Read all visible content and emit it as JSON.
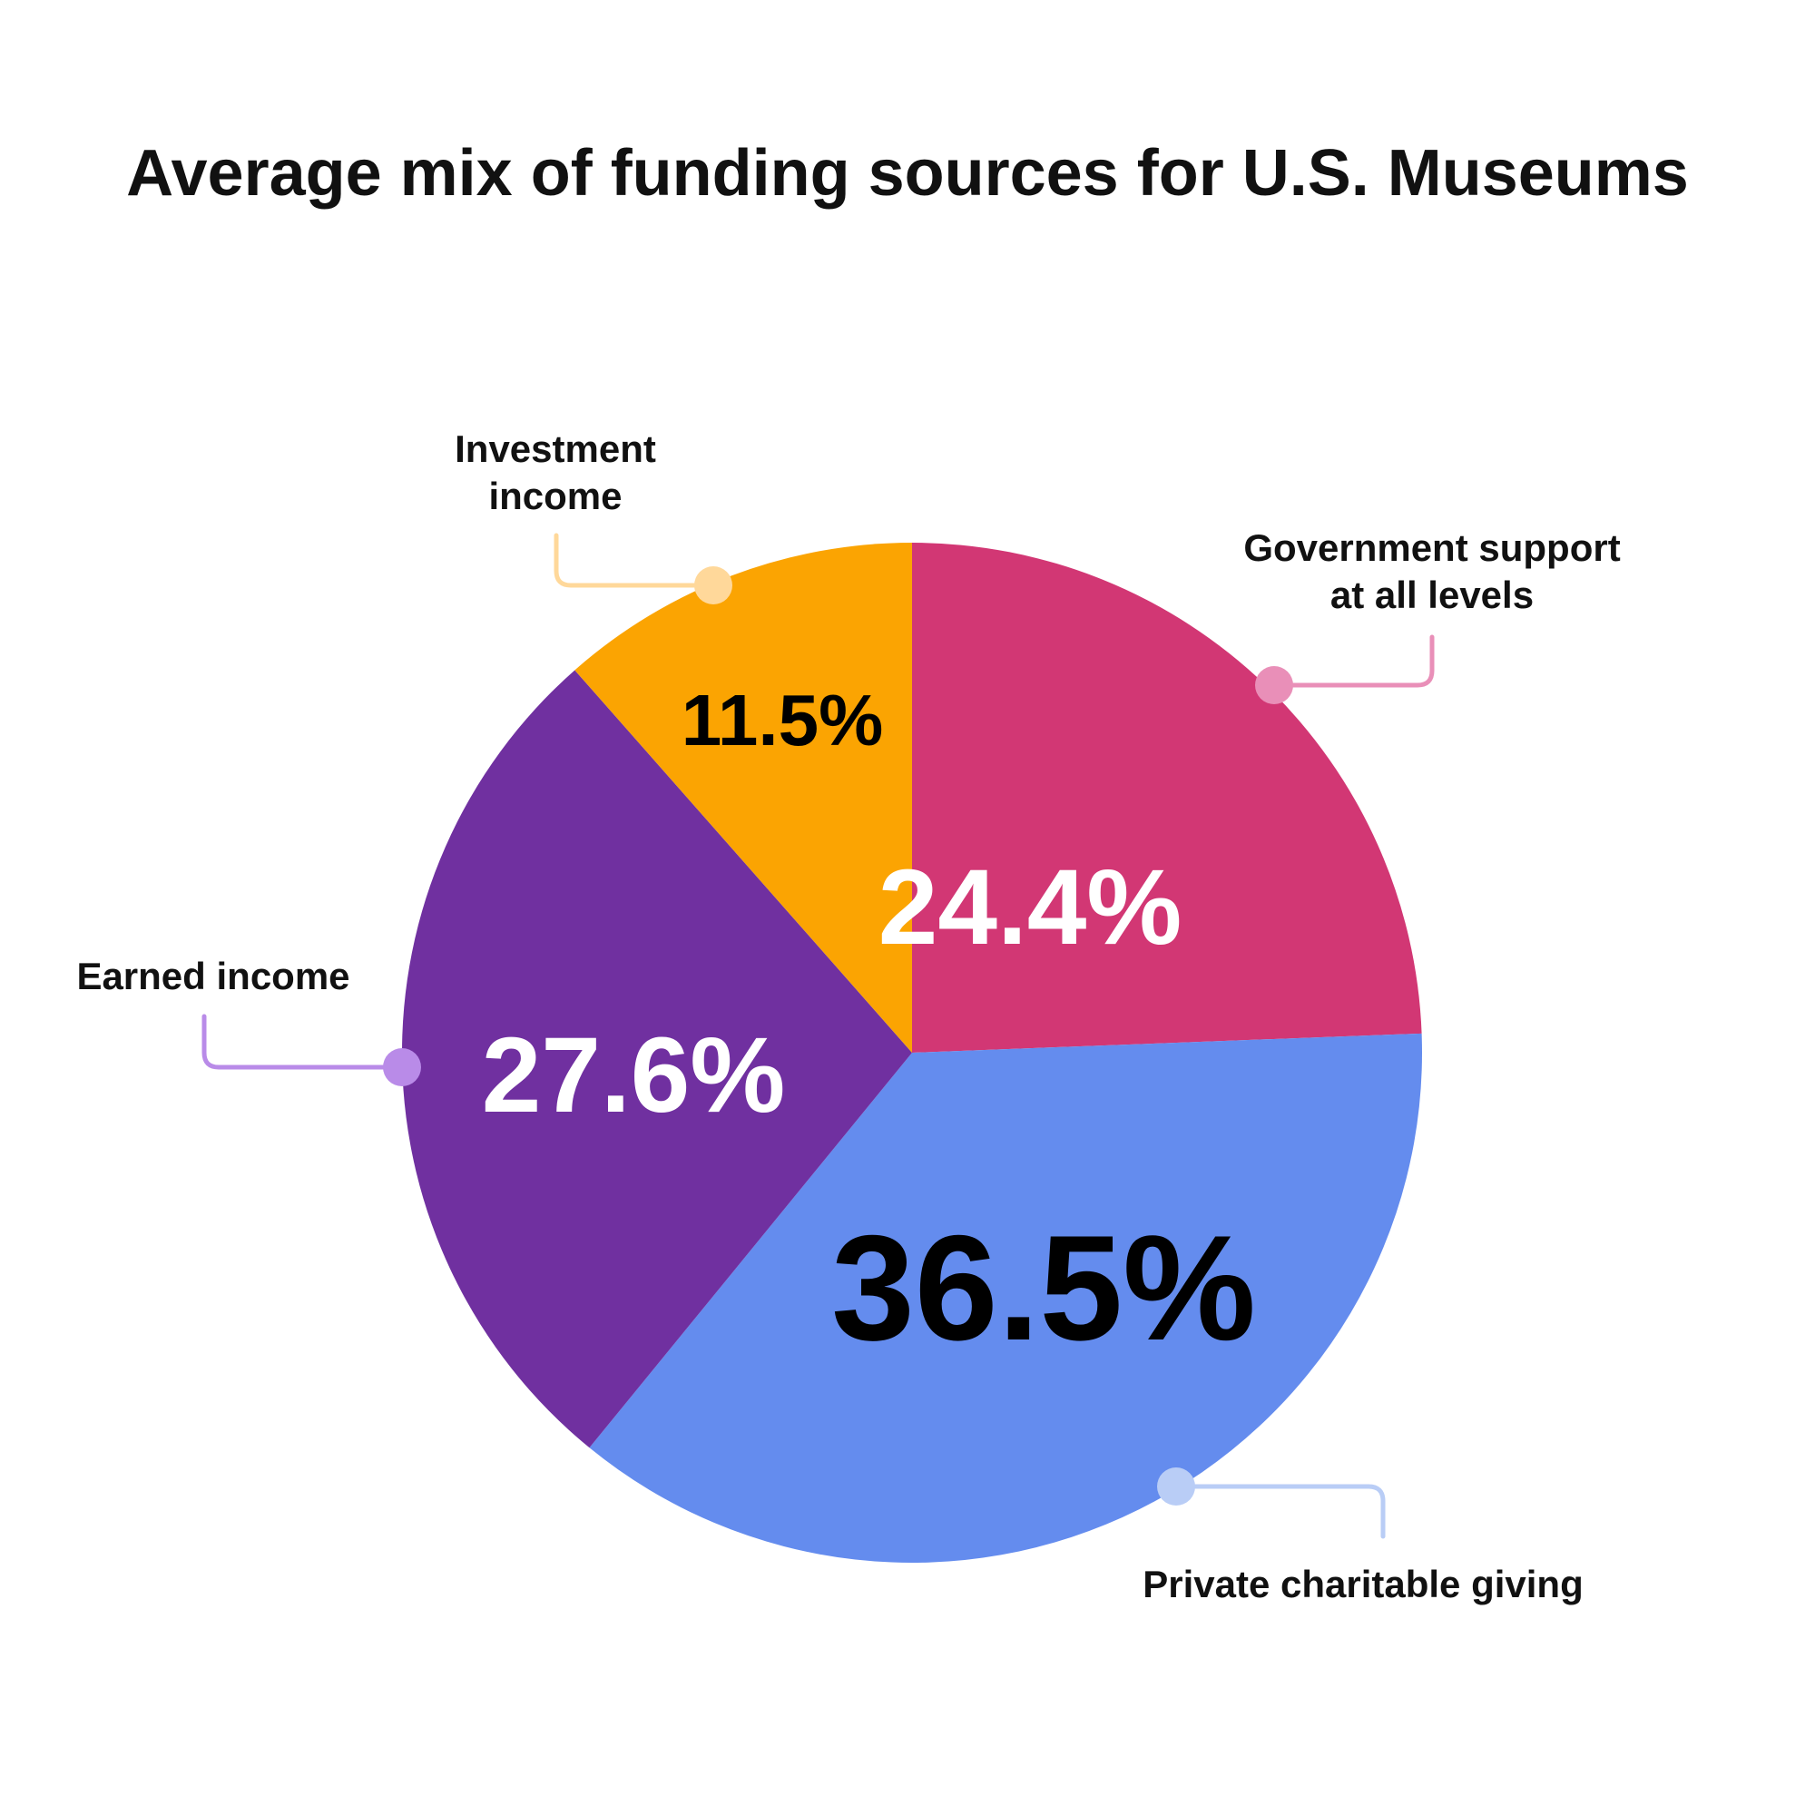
{
  "chart_data": {
    "type": "pie",
    "title": "Average mix of funding sources for U.S. Museums",
    "slices": [
      {
        "label_lines": [
          "Government support",
          "at all levels"
        ],
        "value": 24.4,
        "display": "24.4%",
        "color": "#D23774",
        "leader_color": "#E98FB8",
        "text_color": "#FFFFFF"
      },
      {
        "label_lines": [
          "Private charitable giving"
        ],
        "value": 36.5,
        "display": "36.5%",
        "color": "#648CEE",
        "leader_color": "#B9CDF6",
        "text_color": "#000000"
      },
      {
        "label_lines": [
          "Earned income"
        ],
        "value": 27.6,
        "display": "27.6%",
        "color": "#7030A0",
        "leader_color": "#B98BE8",
        "text_color": "#FFFFFF"
      },
      {
        "label_lines": [
          "Investment",
          "income"
        ],
        "value": 11.5,
        "display": "11.5%",
        "color": "#FBA402",
        "leader_color": "#FFD89A",
        "text_color": "#000000"
      }
    ],
    "start": "12 o'clock",
    "direction": "clockwise",
    "legend": "none"
  }
}
